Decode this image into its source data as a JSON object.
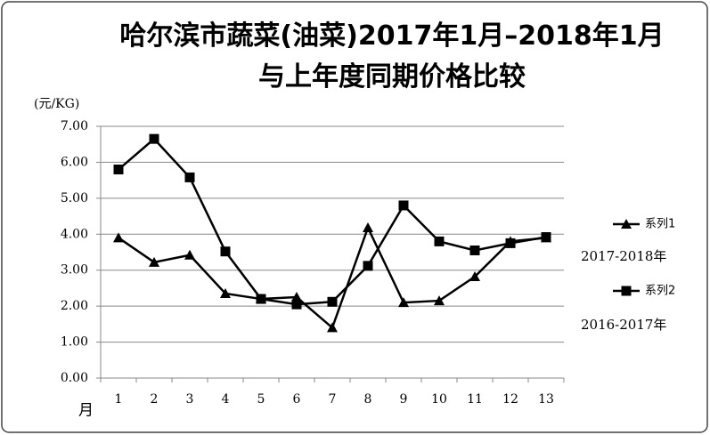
{
  "chart_data": {
    "type": "line",
    "title": "哈尔滨市蔬菜(油菜)2017年1月–2018年1月与上年度同期价格比较",
    "y_label": "(元/KG)",
    "x_label": "月",
    "categories": [
      "1",
      "2",
      "3",
      "4",
      "5",
      "6",
      "7",
      "8",
      "9",
      "10",
      "11",
      "12",
      "13"
    ],
    "series": [
      {
        "name": "系列1",
        "color": "#000000",
        "marker": "triangle",
        "values": [
          3.9,
          3.22,
          3.42,
          2.35,
          2.2,
          2.25,
          1.4,
          4.18,
          2.1,
          2.15,
          2.82,
          3.8,
          3.9
        ]
      },
      {
        "name": "系列2",
        "color": "#000000",
        "marker": "square",
        "values": [
          5.8,
          6.65,
          5.58,
          3.52,
          2.2,
          2.05,
          2.12,
          3.12,
          4.8,
          3.8,
          3.55,
          3.75,
          3.92
        ]
      }
    ],
    "annotations": [
      "2017-2018年",
      "2016-2017年"
    ],
    "ylim": [
      0,
      7
    ],
    "yticks": [
      {
        "value": 0,
        "label": "0.00"
      },
      {
        "value": 1,
        "label": "1.00"
      },
      {
        "value": 2,
        "label": "2.00"
      },
      {
        "value": 3,
        "label": "3.00"
      },
      {
        "value": 4,
        "label": "4.00"
      },
      {
        "value": 5,
        "label": "5.00"
      },
      {
        "value": 6,
        "label": "6.00"
      },
      {
        "value": 7,
        "label": "7.00"
      }
    ],
    "grid": true
  }
}
